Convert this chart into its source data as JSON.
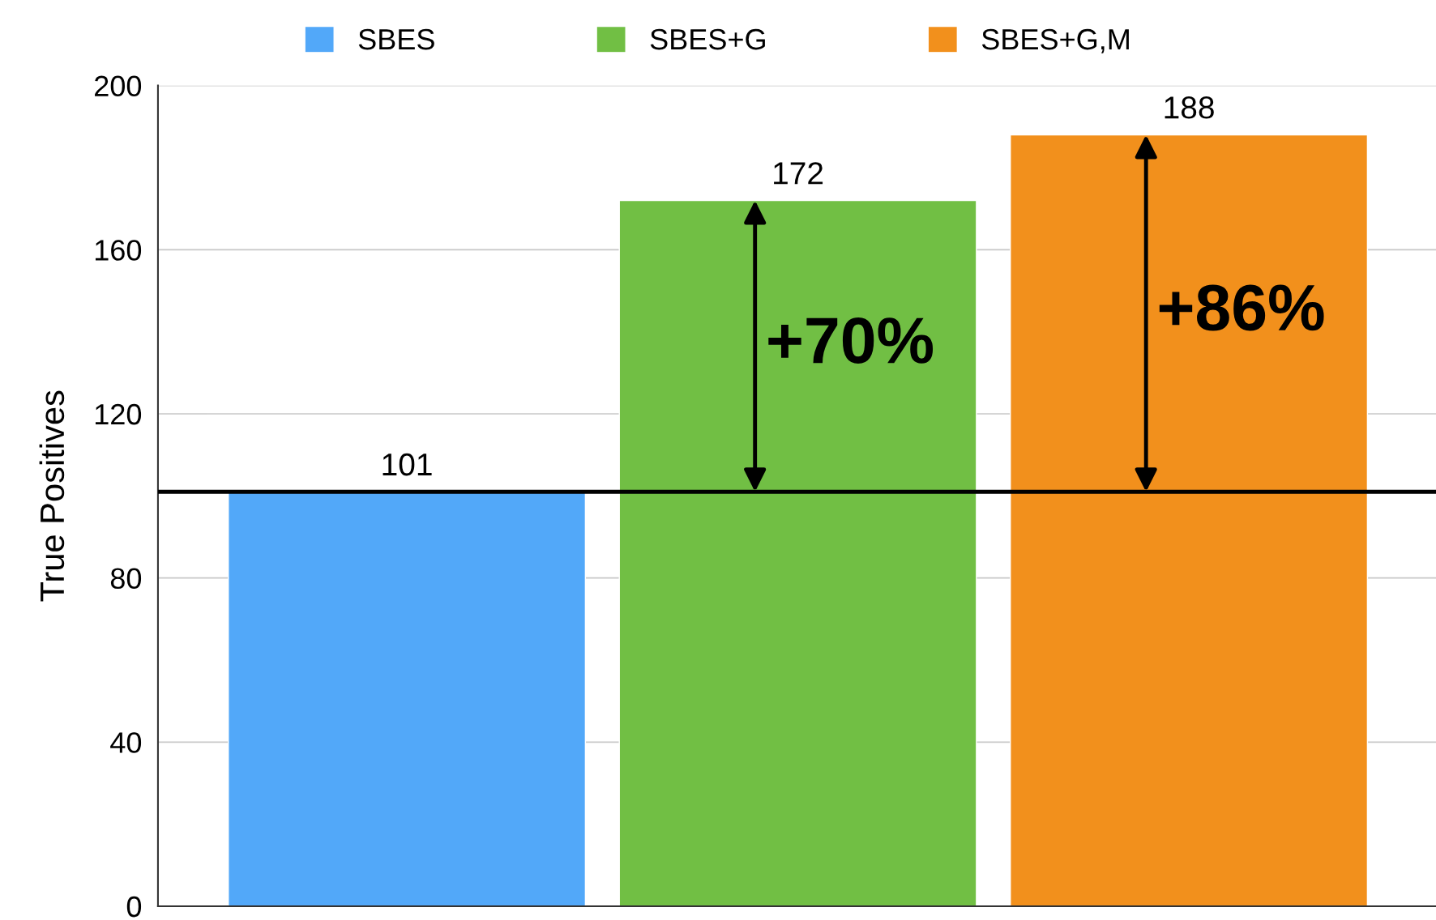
{
  "chart_data": {
    "type": "bar",
    "ylabel": "True Positives",
    "categories": [
      null
    ],
    "series": [
      {
        "name": "SBES",
        "color": "#52a8f9",
        "values": [
          101
        ]
      },
      {
        "name": "SBES+G",
        "color": "#71bf44",
        "values": [
          172
        ]
      },
      {
        "name": "SBES+G,M",
        "color": "#f2901c",
        "values": [
          188
        ]
      }
    ],
    "ylim": [
      0,
      200
    ],
    "yticks": [
      0,
      40,
      80,
      120,
      160,
      200
    ],
    "grid": "y",
    "legend": "top",
    "data_labels": true,
    "ref_lines": [
      {
        "axis": "y",
        "value": 101,
        "color": "#000000",
        "line_style": "solid"
      }
    ],
    "annotations": [
      "+70%",
      "+86%"
    ]
  }
}
